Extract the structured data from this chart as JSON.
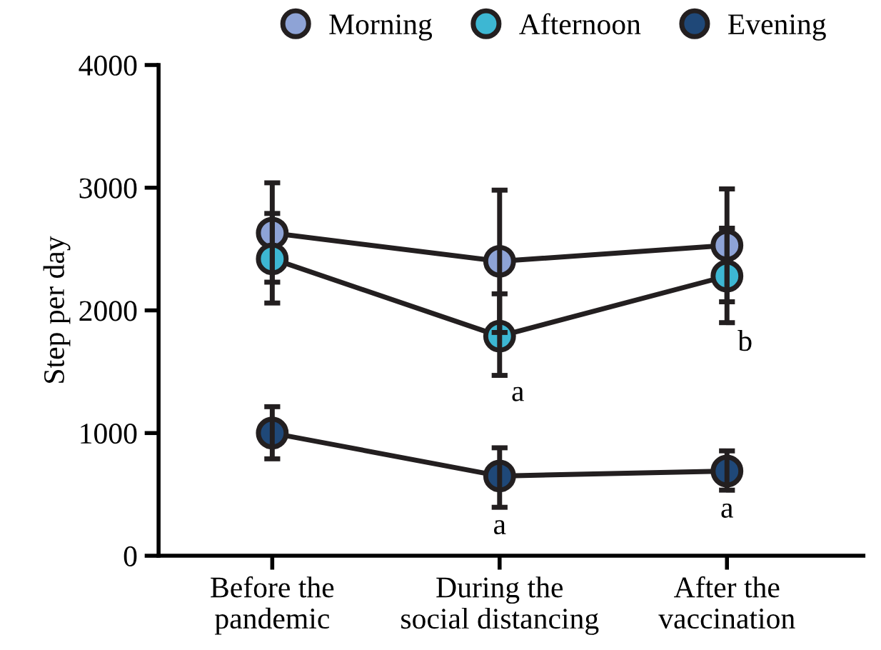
{
  "chart_data": {
    "type": "line",
    "ylabel": "Step per day",
    "categories": [
      "Before the\npandemic",
      "During the\nsocial distancing",
      "After the\nvaccination"
    ],
    "series": [
      {
        "name": "Morning",
        "color": "#8ea3d6",
        "values": [
          2630,
          2400,
          2530
        ],
        "errors": [
          [
            2230,
            3040
          ],
          [
            1820,
            2980
          ],
          [
            2070,
            2990
          ]
        ]
      },
      {
        "name": "Afternoon",
        "color": "#3db7d3",
        "values": [
          2420,
          1790,
          2280
        ],
        "errors": [
          [
            2060,
            2790
          ],
          [
            1470,
            2135
          ],
          [
            1900,
            2670
          ]
        ]
      },
      {
        "name": "Evening",
        "color": "#1f4878",
        "values": [
          1000,
          650,
          690
        ],
        "errors": [
          [
            790,
            1215
          ],
          [
            395,
            880
          ],
          [
            535,
            855
          ]
        ]
      }
    ],
    "ylim": [
      0,
      4000
    ],
    "yticks": [
      0,
      1000,
      2000,
      3000,
      4000
    ],
    "marker": "circle",
    "line_style": "solid",
    "grid": false,
    "legend": "top",
    "annotations": [
      "a",
      "b",
      "a",
      "a"
    ]
  }
}
